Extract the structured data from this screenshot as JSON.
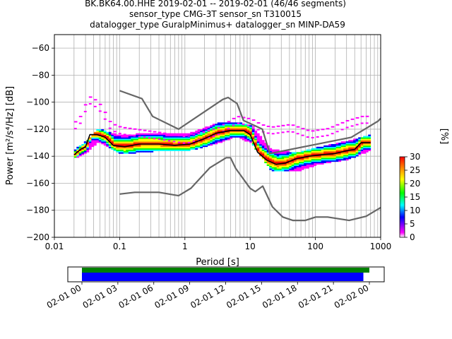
{
  "title_lines": [
    "BK.BK64.00.HHE   2019-02-01 -- 2019-02-01  (46/46 segments)",
    "sensor_type CMG-3T sensor_sn T310015",
    "datalogger_type GuralpMinimus+ datalogger_sn MINP-DA59"
  ],
  "chart_data": {
    "type": "heatmap",
    "xlabel": "Period [s]",
    "ylabel": "Power [m²/s⁴/Hz] [dB]",
    "x_scale": "log",
    "xlim": [
      0.01,
      1000
    ],
    "ylim": [
      -200,
      -50
    ],
    "grid": true,
    "x_ticks": [
      {
        "value": 0.01,
        "label": "0.01"
      },
      {
        "value": 0.1,
        "label": "0.1"
      },
      {
        "value": 1,
        "label": "1"
      },
      {
        "value": 10,
        "label": "10"
      },
      {
        "value": 100,
        "label": "100"
      },
      {
        "value": 1000,
        "label": "1000"
      }
    ],
    "y_ticks": [
      -60,
      -80,
      -100,
      -120,
      -140,
      -160,
      -180,
      -200
    ],
    "colorbar": {
      "label": "[%]",
      "range": [
        0,
        30
      ],
      "ticks": [
        0,
        5,
        10,
        15,
        20,
        25,
        30
      ],
      "colors": [
        "#ffffff",
        "#ff00ff",
        "#0000ff",
        "#00ffff",
        "#00ff00",
        "#ffff00",
        "#ff7f00",
        "#ff0000"
      ]
    },
    "series": [
      {
        "name": "",
        "role": "new-high-noise-model",
        "color": "#666666",
        "x": [
          0.1,
          0.22,
          0.32,
          0.8,
          3.8,
          4.6,
          6.3,
          7.9,
          15.4,
          20,
          354.8,
          912,
          1000
        ],
        "y": [
          -91.5,
          -97.4,
          -110.5,
          -120,
          -98,
          -96.5,
          -101,
          -113.5,
          -120,
          -138,
          -126,
          -114,
          -112
        ]
      },
      {
        "name": "",
        "role": "new-low-noise-model",
        "color": "#666666",
        "x": [
          0.1,
          0.17,
          0.4,
          0.8,
          1.24,
          2.4,
          4.3,
          5,
          6,
          10,
          12,
          15.6,
          21.9,
          31.6,
          45,
          70,
          101,
          154,
          328,
          600,
          1000
        ],
        "y": [
          -168,
          -166.7,
          -166.7,
          -169.2,
          -163.7,
          -148.6,
          -141.1,
          -141.1,
          -149,
          -163.8,
          -166.2,
          -162.1,
          -177.5,
          -185,
          -187.5,
          -187.5,
          -185,
          -185,
          -187.5,
          -184.4,
          -178
        ]
      },
      {
        "name": "",
        "role": "mean",
        "color": "#000000",
        "x": [
          0.02,
          0.025,
          0.03,
          0.035,
          0.045,
          0.06,
          0.08,
          0.12,
          0.2,
          0.4,
          0.7,
          1.2,
          2,
          3,
          5,
          8,
          10,
          13,
          18,
          25,
          35,
          50,
          80,
          120,
          200,
          300,
          400,
          500,
          700
        ],
        "y": [
          -139,
          -135,
          -133,
          -124,
          -124,
          -126,
          -132,
          -133,
          -131,
          -131,
          -132,
          -131,
          -127,
          -123,
          -121,
          -121,
          -124,
          -137,
          -143,
          -146,
          -145,
          -142,
          -140,
          -139,
          -138,
          -136,
          -135,
          -130,
          -130
        ]
      },
      {
        "name": "",
        "role": "psd-density-envelope-upper",
        "x": [
          0.02,
          0.03,
          0.045,
          0.1,
          0.3,
          1,
          3,
          6,
          10,
          20,
          50,
          100,
          300,
          700
        ],
        "y": [
          -136,
          -130,
          -121,
          -126,
          -124,
          -125,
          -117,
          -116,
          -119,
          -136,
          -139,
          -135,
          -130,
          -125
        ]
      },
      {
        "name": "",
        "role": "psd-density-envelope-lower",
        "x": [
          0.02,
          0.03,
          0.045,
          0.1,
          0.3,
          1,
          3,
          6,
          10,
          20,
          50,
          100,
          300,
          700
        ],
        "y": [
          -141,
          -137,
          -129,
          -138,
          -136,
          -136,
          -130,
          -125,
          -130,
          -150,
          -151,
          -146,
          -142,
          -135
        ]
      },
      {
        "name": "",
        "role": "outlier-psds",
        "x": [
          0.02,
          0.025,
          0.03,
          0.035,
          0.05,
          0.07,
          0.1,
          0.2,
          0.4,
          1,
          3,
          6,
          10,
          14,
          20,
          40,
          80,
          150,
          300,
          500,
          700
        ],
        "y": [
          -115,
          -110,
          -99,
          -96,
          -103,
          -116,
          -119,
          -121,
          -123,
          -126,
          -120,
          -111,
          -113,
          -117,
          -119,
          -117,
          -122,
          -120,
          -114,
          -111,
          -111
        ]
      }
    ],
    "coverage": {
      "tick_labels": [
        "02-01 00",
        "02-01 03",
        "02-01 06",
        "02-01 09",
        "02-01 12",
        "02-01 15",
        "02-01 18",
        "02-01 21",
        "02-02 00"
      ],
      "data_range_hours": [
        0,
        24
      ],
      "psd_range_hours": [
        0,
        23.5
      ],
      "colors": [
        "#008000",
        "#0000ff"
      ]
    }
  }
}
